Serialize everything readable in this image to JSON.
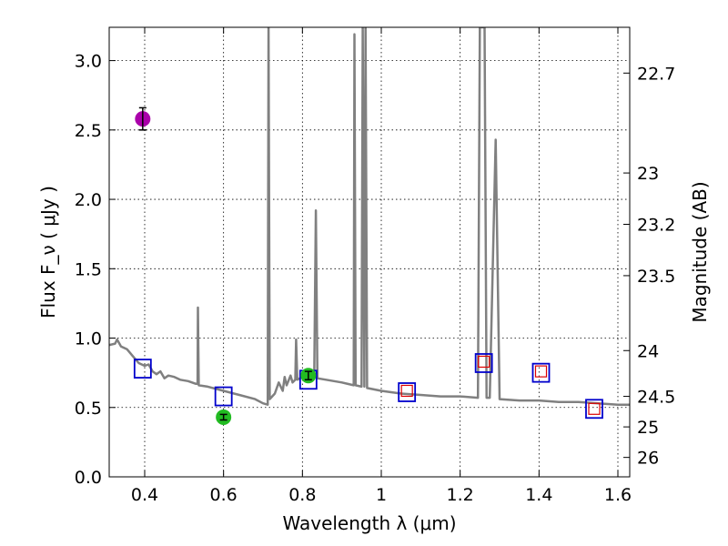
{
  "chart_data": {
    "type": "line",
    "xlabel": "Wavelength  λ (μm)",
    "ylabel": "Flux  F_ν  ( μJy )",
    "y2label": "Magnitude (AB)",
    "xlim": [
      0.31,
      1.63
    ],
    "ylim": [
      0.0,
      3.24
    ],
    "grid": true,
    "x_ticks": [
      0.4,
      0.6,
      0.8,
      1.0,
      1.2,
      1.4,
      1.6
    ],
    "x_tick_labels": [
      "0.4",
      "0.6",
      "0.8",
      "1",
      "1.2",
      "1.4",
      "1.6"
    ],
    "y_ticks": [
      0.0,
      0.5,
      1.0,
      1.5,
      2.0,
      2.5,
      3.0
    ],
    "y_tick_labels": [
      "0.0",
      "0.5",
      "1.0",
      "1.5",
      "2.0",
      "2.5",
      "3.0"
    ],
    "magnitude_ticks": [
      {
        "flux": 2.91,
        "label": "22.7"
      },
      {
        "flux": 2.19,
        "label": "23"
      },
      {
        "flux": 1.82,
        "label": "23.2"
      },
      {
        "flux": 1.45,
        "label": "23.5"
      },
      {
        "flux": 0.91,
        "label": "24"
      },
      {
        "flux": 0.58,
        "label": "24.5"
      },
      {
        "flux": 0.36,
        "label": "25"
      },
      {
        "flux": 0.14,
        "label": "26"
      }
    ],
    "series": [
      {
        "name": "model SED",
        "style": "line",
        "color": "#808080",
        "points": [
          [
            0.31,
            0.95
          ],
          [
            0.325,
            0.96
          ],
          [
            0.33,
            0.99
          ],
          [
            0.34,
            0.94
          ],
          [
            0.355,
            0.92
          ],
          [
            0.37,
            0.87
          ],
          [
            0.385,
            0.82
          ],
          [
            0.4,
            0.8
          ],
          [
            0.41,
            0.81
          ],
          [
            0.42,
            0.76
          ],
          [
            0.43,
            0.74
          ],
          [
            0.44,
            0.76
          ],
          [
            0.45,
            0.71
          ],
          [
            0.46,
            0.73
          ],
          [
            0.475,
            0.72
          ],
          [
            0.49,
            0.7
          ],
          [
            0.51,
            0.69
          ],
          [
            0.53,
            0.67
          ],
          [
            0.534,
            0.67
          ],
          [
            0.535,
            1.22
          ],
          [
            0.537,
            0.66
          ],
          [
            0.56,
            0.65
          ],
          [
            0.6,
            0.62
          ],
          [
            0.64,
            0.59
          ],
          [
            0.68,
            0.56
          ],
          [
            0.7,
            0.53
          ],
          [
            0.712,
            0.52
          ],
          [
            0.714,
            3.24
          ],
          [
            0.717,
            0.56
          ],
          [
            0.73,
            0.6
          ],
          [
            0.74,
            0.68
          ],
          [
            0.75,
            0.62
          ],
          [
            0.755,
            0.72
          ],
          [
            0.76,
            0.66
          ],
          [
            0.77,
            0.73
          ],
          [
            0.775,
            0.68
          ],
          [
            0.782,
            0.7
          ],
          [
            0.784,
            0.99
          ],
          [
            0.787,
            0.7
          ],
          [
            0.8,
            0.72
          ],
          [
            0.83,
            0.71
          ],
          [
            0.834,
            1.92
          ],
          [
            0.838,
            0.71
          ],
          [
            0.86,
            0.7
          ],
          [
            0.9,
            0.68
          ],
          [
            0.93,
            0.66
          ],
          [
            0.932,
            3.19
          ],
          [
            0.935,
            0.66
          ],
          [
            0.95,
            0.65
          ],
          [
            0.953,
            3.24
          ],
          [
            0.957,
            0.65
          ],
          [
            0.96,
            3.24
          ],
          [
            0.964,
            0.64
          ],
          [
            1.0,
            0.62
          ],
          [
            1.05,
            0.6
          ],
          [
            1.1,
            0.59
          ],
          [
            1.15,
            0.58
          ],
          [
            1.2,
            0.58
          ],
          [
            1.245,
            0.57
          ],
          [
            1.25,
            3.24
          ],
          [
            1.262,
            3.24
          ],
          [
            1.267,
            0.57
          ],
          [
            1.275,
            0.57
          ],
          [
            1.29,
            2.43
          ],
          [
            1.3,
            0.56
          ],
          [
            1.35,
            0.55
          ],
          [
            1.4,
            0.55
          ],
          [
            1.45,
            0.54
          ],
          [
            1.5,
            0.54
          ],
          [
            1.55,
            0.53
          ],
          [
            1.6,
            0.52
          ],
          [
            1.63,
            0.52
          ]
        ]
      },
      {
        "name": "model photometry",
        "style": "open-square",
        "color": "#0000cc",
        "x": [
          0.395,
          0.6,
          0.815,
          1.065,
          1.26,
          1.405,
          1.54
        ],
        "y": [
          0.78,
          0.58,
          0.7,
          0.61,
          0.82,
          0.75,
          0.49
        ]
      },
      {
        "name": "observed photometry",
        "style": "small-red-square",
        "color": "#dd0000",
        "x": [
          1.065,
          1.26,
          1.405,
          1.54
        ],
        "y": [
          0.62,
          0.83,
          0.76,
          0.49
        ]
      },
      {
        "name": "observed flux (green)",
        "style": "filled-circle",
        "color": "#22bb22",
        "x": [
          0.6,
          0.815
        ],
        "y": [
          0.43,
          0.73
        ],
        "err": [
          0.02,
          0.03
        ]
      },
      {
        "name": "observed flux (magenta)",
        "style": "filled-circle",
        "color": "#aa00aa",
        "x": [
          0.395
        ],
        "y": [
          2.58
        ],
        "err": [
          0.08
        ]
      }
    ]
  }
}
